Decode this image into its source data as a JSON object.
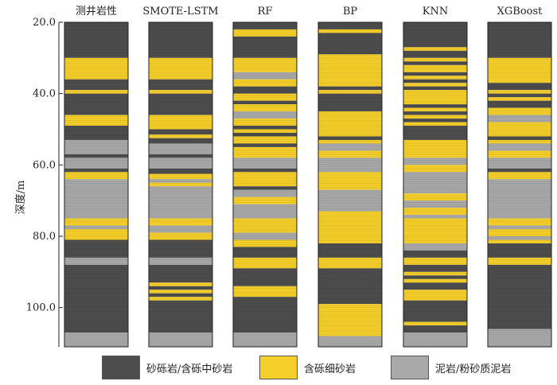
{
  "chart_data": {
    "type": "lithology-log",
    "ylabel": "深度/m",
    "yticks": [
      "20.0",
      "40.0",
      "60.0",
      "80.0",
      "100.0"
    ],
    "ylim": [
      20,
      111
    ],
    "colors": {
      "gravel": "#4d4d4d",
      "sand": "#f5cf2a",
      "mud": "#a9a9a9"
    },
    "legend": [
      {
        "key": "gravel",
        "label": "砂砾岩/含砾中砂岩"
      },
      {
        "key": "sand",
        "label": "含砾细砂岩"
      },
      {
        "key": "mud",
        "label": "泥岩/粉砂质泥岩"
      }
    ],
    "columns": [
      {
        "name": "测井岩性",
        "layers": [
          [
            20,
            30,
            "gravel"
          ],
          [
            30,
            36,
            "sand"
          ],
          [
            36,
            39,
            "gravel"
          ],
          [
            39,
            40,
            "sand"
          ],
          [
            40,
            46,
            "gravel"
          ],
          [
            46,
            49,
            "sand"
          ],
          [
            49,
            53,
            "gravel"
          ],
          [
            53,
            57,
            "mud"
          ],
          [
            57,
            58,
            "gravel"
          ],
          [
            58,
            61,
            "mud"
          ],
          [
            61,
            62,
            "gravel"
          ],
          [
            62,
            64,
            "sand"
          ],
          [
            64,
            75,
            "mud"
          ],
          [
            75,
            77,
            "sand"
          ],
          [
            77,
            78,
            "mud"
          ],
          [
            78,
            81,
            "sand"
          ],
          [
            81,
            86,
            "gravel"
          ],
          [
            86,
            88,
            "mud"
          ],
          [
            88,
            107,
            "gravel"
          ],
          [
            107,
            111,
            "mud"
          ]
        ]
      },
      {
        "name": "SMOTE-LSTM",
        "layers": [
          [
            20,
            30,
            "gravel"
          ],
          [
            30,
            36,
            "sand"
          ],
          [
            36,
            39,
            "gravel"
          ],
          [
            39,
            40,
            "sand"
          ],
          [
            40,
            46,
            "gravel"
          ],
          [
            46,
            50,
            "sand"
          ],
          [
            50,
            51.5,
            "gravel"
          ],
          [
            51.5,
            52.5,
            "sand"
          ],
          [
            52.5,
            54,
            "gravel"
          ],
          [
            54,
            57,
            "mud"
          ],
          [
            57,
            58,
            "gravel"
          ],
          [
            58,
            61,
            "mud"
          ],
          [
            61,
            62.5,
            "gravel"
          ],
          [
            62.5,
            64,
            "sand"
          ],
          [
            64,
            65,
            "mud"
          ],
          [
            65,
            66,
            "sand"
          ],
          [
            66,
            75,
            "mud"
          ],
          [
            75,
            77,
            "sand"
          ],
          [
            77,
            79,
            "mud"
          ],
          [
            79,
            81,
            "sand"
          ],
          [
            81,
            86,
            "gravel"
          ],
          [
            86,
            88,
            "mud"
          ],
          [
            88,
            93,
            "gravel"
          ],
          [
            93,
            94,
            "sand"
          ],
          [
            94,
            95,
            "gravel"
          ],
          [
            95,
            96,
            "sand"
          ],
          [
            96,
            97,
            "gravel"
          ],
          [
            97,
            98,
            "sand"
          ],
          [
            98,
            107,
            "gravel"
          ],
          [
            107,
            111,
            "mud"
          ]
        ]
      },
      {
        "name": "RF",
        "layers": [
          [
            20,
            22,
            "gravel"
          ],
          [
            22,
            24,
            "sand"
          ],
          [
            24,
            30,
            "gravel"
          ],
          [
            30,
            34,
            "sand"
          ],
          [
            34,
            36,
            "mud"
          ],
          [
            36,
            38,
            "sand"
          ],
          [
            38,
            40,
            "gravel"
          ],
          [
            40,
            42,
            "sand"
          ],
          [
            42,
            43,
            "gravel"
          ],
          [
            43,
            45,
            "sand"
          ],
          [
            45,
            47,
            "mud"
          ],
          [
            47,
            49,
            "sand"
          ],
          [
            49,
            50,
            "gravel"
          ],
          [
            50,
            51,
            "sand"
          ],
          [
            51,
            52,
            "gravel"
          ],
          [
            52,
            54,
            "sand"
          ],
          [
            54,
            55,
            "gravel"
          ],
          [
            55,
            58,
            "sand"
          ],
          [
            58,
            61,
            "mud"
          ],
          [
            61,
            62,
            "gravel"
          ],
          [
            62,
            66,
            "sand"
          ],
          [
            66,
            67,
            "gravel"
          ],
          [
            67,
            69,
            "mud"
          ],
          [
            69,
            71,
            "sand"
          ],
          [
            71,
            75,
            "mud"
          ],
          [
            75,
            79,
            "sand"
          ],
          [
            79,
            81,
            "mud"
          ],
          [
            81,
            83,
            "sand"
          ],
          [
            83,
            86,
            "gravel"
          ],
          [
            86,
            89,
            "sand"
          ],
          [
            89,
            94,
            "gravel"
          ],
          [
            94,
            97,
            "sand"
          ],
          [
            97,
            107,
            "gravel"
          ],
          [
            107,
            111,
            "mud"
          ]
        ]
      },
      {
        "name": "BP",
        "layers": [
          [
            20,
            22,
            "gravel"
          ],
          [
            22,
            23,
            "sand"
          ],
          [
            23,
            29,
            "gravel"
          ],
          [
            29,
            38,
            "sand"
          ],
          [
            38,
            39,
            "gravel"
          ],
          [
            39,
            40,
            "sand"
          ],
          [
            40,
            45,
            "gravel"
          ],
          [
            45,
            52,
            "sand"
          ],
          [
            52,
            53,
            "gravel"
          ],
          [
            53,
            54,
            "sand"
          ],
          [
            54,
            56,
            "mud"
          ],
          [
            56,
            58,
            "sand"
          ],
          [
            58,
            62,
            "mud"
          ],
          [
            62,
            67,
            "sand"
          ],
          [
            67,
            73,
            "mud"
          ],
          [
            73,
            82,
            "sand"
          ],
          [
            82,
            86,
            "gravel"
          ],
          [
            86,
            89,
            "sand"
          ],
          [
            89,
            99,
            "gravel"
          ],
          [
            99,
            108,
            "sand"
          ],
          [
            108,
            111,
            "mud"
          ]
        ]
      },
      {
        "name": "KNN",
        "layers": [
          [
            20,
            27,
            "gravel"
          ],
          [
            27,
            28,
            "sand"
          ],
          [
            28,
            30,
            "gravel"
          ],
          [
            30,
            31,
            "sand"
          ],
          [
            31,
            32,
            "gravel"
          ],
          [
            32,
            34,
            "sand"
          ],
          [
            34,
            35,
            "gravel"
          ],
          [
            35,
            36,
            "sand"
          ],
          [
            36,
            37,
            "gravel"
          ],
          [
            37,
            38,
            "sand"
          ],
          [
            38,
            39,
            "gravel"
          ],
          [
            39,
            43,
            "sand"
          ],
          [
            43,
            44,
            "gravel"
          ],
          [
            44,
            45,
            "sand"
          ],
          [
            45,
            46,
            "gravel"
          ],
          [
            46,
            47,
            "sand"
          ],
          [
            47,
            48,
            "gravel"
          ],
          [
            48,
            49,
            "sand"
          ],
          [
            49,
            53,
            "gravel"
          ],
          [
            53,
            58,
            "sand"
          ],
          [
            58,
            60,
            "mud"
          ],
          [
            60,
            62,
            "sand"
          ],
          [
            62,
            68,
            "mud"
          ],
          [
            68,
            70,
            "sand"
          ],
          [
            70,
            72,
            "mud"
          ],
          [
            72,
            74,
            "sand"
          ],
          [
            74,
            75,
            "mud"
          ],
          [
            75,
            82,
            "sand"
          ],
          [
            82,
            84,
            "mud"
          ],
          [
            84,
            86,
            "gravel"
          ],
          [
            86,
            88,
            "sand"
          ],
          [
            88,
            90,
            "gravel"
          ],
          [
            90,
            91,
            "sand"
          ],
          [
            91,
            92,
            "gravel"
          ],
          [
            92,
            93,
            "sand"
          ],
          [
            93,
            95,
            "gravel"
          ],
          [
            95,
            98,
            "sand"
          ],
          [
            98,
            104,
            "gravel"
          ],
          [
            104,
            105,
            "sand"
          ],
          [
            105,
            107,
            "gravel"
          ],
          [
            107,
            111,
            "mud"
          ]
        ]
      },
      {
        "name": "XGBoost",
        "layers": [
          [
            20,
            30,
            "gravel"
          ],
          [
            30,
            37,
            "sand"
          ],
          [
            37,
            39,
            "gravel"
          ],
          [
            39,
            40,
            "sand"
          ],
          [
            40,
            41,
            "gravel"
          ],
          [
            41,
            42,
            "sand"
          ],
          [
            42,
            44,
            "gravel"
          ],
          [
            44,
            46,
            "sand"
          ],
          [
            46,
            48,
            "mud"
          ],
          [
            48,
            52,
            "sand"
          ],
          [
            52,
            53,
            "gravel"
          ],
          [
            53,
            54,
            "sand"
          ],
          [
            54,
            56,
            "mud"
          ],
          [
            56,
            58,
            "sand"
          ],
          [
            58,
            61,
            "mud"
          ],
          [
            61,
            62,
            "gravel"
          ],
          [
            62,
            64,
            "sand"
          ],
          [
            64,
            75,
            "mud"
          ],
          [
            75,
            77,
            "sand"
          ],
          [
            77,
            78,
            "mud"
          ],
          [
            78,
            80,
            "sand"
          ],
          [
            80,
            81,
            "mud"
          ],
          [
            81,
            82,
            "sand"
          ],
          [
            82,
            86,
            "gravel"
          ],
          [
            86,
            88,
            "sand"
          ],
          [
            88,
            106,
            "gravel"
          ],
          [
            106,
            111,
            "mud"
          ]
        ]
      }
    ]
  }
}
